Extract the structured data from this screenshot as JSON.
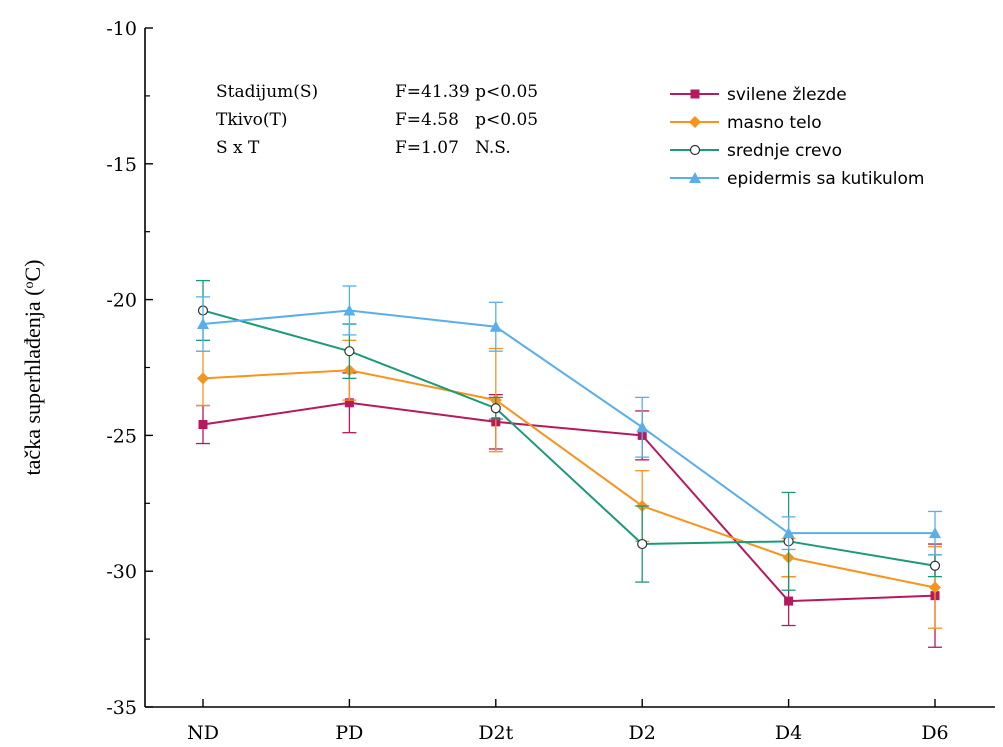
{
  "chart_data": {
    "type": "line",
    "categories": [
      "ND",
      "PD",
      "D2t",
      "D2",
      "D4",
      "D6"
    ],
    "ylabel": "tačka superhlađenja (°C)",
    "ylabel_parts": [
      "tačka superhlađenja (",
      "o",
      "C)"
    ],
    "xlabel": "",
    "ylim": [
      -35,
      -10
    ],
    "yticks": [
      -35,
      -30,
      -25,
      -20,
      -15,
      -10
    ],
    "yticklabels": [
      "-35",
      "-30",
      "-25",
      "-20",
      "-15",
      "-10"
    ],
    "series": [
      {
        "name": "svilene žlezde",
        "color": "#b5195e",
        "marker": "square",
        "values": [
          -24.6,
          -23.8,
          -24.5,
          -25.0,
          -31.1,
          -30.9
        ],
        "error": [
          0.7,
          1.1,
          1.0,
          0.9,
          0.9,
          1.9
        ]
      },
      {
        "name": "masno telo",
        "color": "#f7941d",
        "marker": "diamond",
        "values": [
          -22.9,
          -22.6,
          -23.7,
          -27.6,
          -29.5,
          -30.6
        ],
        "error": [
          1.0,
          1.1,
          1.9,
          1.3,
          0.7,
          1.5
        ]
      },
      {
        "name": "srednje crevo",
        "color": "#1a9a78",
        "marker": "circle-open",
        "values": [
          -20.4,
          -21.9,
          -24.0,
          -29.0,
          -28.9,
          -29.8
        ],
        "error": [
          1.1,
          1.0,
          0.4,
          1.4,
          1.8,
          0.4
        ]
      },
      {
        "name": "epidermis sa kutikulom",
        "color": "#5aaeea",
        "marker": "triangle",
        "values": [
          -20.9,
          -20.4,
          -21.0,
          -24.7,
          -28.6,
          -28.6
        ],
        "error": [
          1.0,
          0.9,
          0.9,
          1.1,
          0.6,
          0.8
        ]
      }
    ],
    "stats": [
      {
        "label": "Stadijum(S)",
        "value": "F=41.39 p<0.05"
      },
      {
        "label": "Tkivo(T)",
        "value": "F=4.58   p<0.05"
      },
      {
        "label": "S x T",
        "value": "F=1.07   N.S."
      }
    ],
    "legend_position": "top-right",
    "grid": false
  }
}
